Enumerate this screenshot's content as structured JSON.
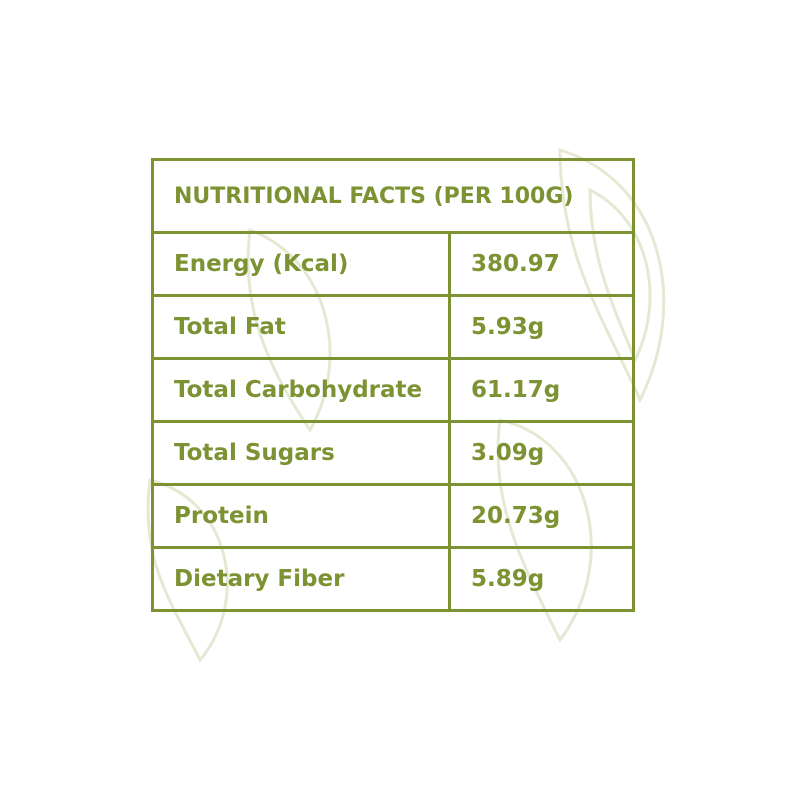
{
  "table": {
    "title": "NUTRITIONAL FACTS (PER 100G)",
    "rows": [
      [
        "Energy (Kcal)",
        "380.97"
      ],
      [
        "Total Fat",
        "5.93g"
      ],
      [
        "Total Carbohydrate",
        "61.17g"
      ],
      [
        "Total Sugars",
        "3.09g"
      ],
      [
        "Protein",
        "20.73g"
      ],
      [
        "Dietary Fiber",
        "5.89g"
      ]
    ]
  }
}
